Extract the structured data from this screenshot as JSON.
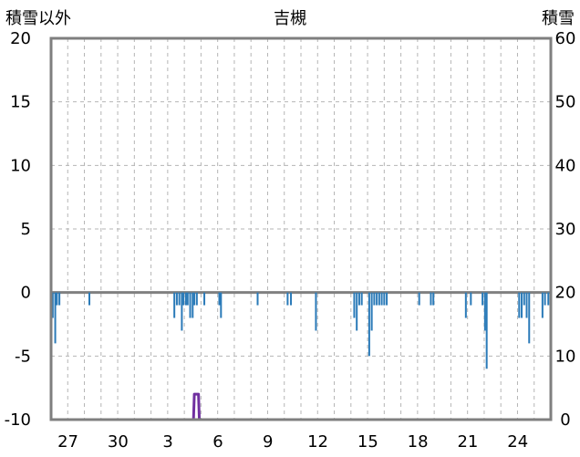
{
  "chart_data": {
    "type": "bar",
    "title": "吉槻",
    "left_axis_label": "積雪以外",
    "right_axis_label": "積雪",
    "left_ylim": [
      -10,
      20
    ],
    "left_yticks": [
      -10,
      -5,
      0,
      5,
      10,
      15,
      20
    ],
    "left_ytick_labels": [
      "-10",
      "-5",
      "0",
      "5",
      "10",
      "15",
      "20"
    ],
    "right_ylim": [
      0,
      60
    ],
    "right_yticks": [
      0,
      10,
      20,
      30,
      40,
      50,
      60
    ],
    "right_ytick_labels": [
      "0",
      "10",
      "20",
      "30",
      "40",
      "50",
      "60"
    ],
    "x_tick_labels": [
      "27",
      "30",
      "3",
      "6",
      "9",
      "12",
      "15",
      "18",
      "21",
      "24"
    ],
    "grid": true,
    "series": [
      {
        "type": "bar",
        "color": "#2a7ab8",
        "axis": "left",
        "values": [
          [
            0.1,
            -2
          ],
          [
            0.25,
            -4
          ],
          [
            0.35,
            -1
          ],
          [
            0.5,
            -1
          ],
          [
            2.3,
            -1
          ],
          [
            7.4,
            -2
          ],
          [
            7.55,
            -1
          ],
          [
            7.7,
            -1
          ],
          [
            7.85,
            -3
          ],
          [
            7.95,
            -1
          ],
          [
            8.1,
            -1
          ],
          [
            8.2,
            -1
          ],
          [
            8.35,
            -2
          ],
          [
            8.5,
            -2
          ],
          [
            8.6,
            -1
          ],
          [
            8.75,
            -1
          ],
          [
            9.2,
            -1
          ],
          [
            10.1,
            -1
          ],
          [
            10.2,
            -2
          ],
          [
            12.4,
            -1
          ],
          [
            14.2,
            -1
          ],
          [
            14.4,
            -1
          ],
          [
            15.9,
            -3
          ],
          [
            18.2,
            -2
          ],
          [
            18.35,
            -3
          ],
          [
            18.5,
            -1
          ],
          [
            18.65,
            -1
          ],
          [
            19.1,
            -5
          ],
          [
            19.25,
            -3
          ],
          [
            19.4,
            -1
          ],
          [
            19.55,
            -1
          ],
          [
            19.7,
            -1
          ],
          [
            19.85,
            -1
          ],
          [
            20.0,
            -1
          ],
          [
            20.15,
            -1
          ],
          [
            22.1,
            -1
          ],
          [
            22.8,
            -1
          ],
          [
            22.95,
            -1
          ],
          [
            24.9,
            -2
          ],
          [
            25.2,
            -1
          ],
          [
            25.9,
            -1
          ],
          [
            26.05,
            -3
          ],
          [
            26.15,
            -6
          ],
          [
            28.1,
            -2
          ],
          [
            28.25,
            -2
          ],
          [
            28.4,
            -1
          ],
          [
            28.55,
            -2
          ],
          [
            28.7,
            -4
          ],
          [
            29.5,
            -2
          ],
          [
            29.65,
            -1
          ],
          [
            29.85,
            -1
          ]
        ]
      },
      {
        "type": "line",
        "color": "#7030a0",
        "axis": "right",
        "values": [
          [
            0,
            0
          ],
          [
            8.55,
            0
          ],
          [
            8.6,
            4
          ],
          [
            8.85,
            4
          ],
          [
            8.9,
            0
          ],
          [
            30,
            0
          ]
        ]
      }
    ]
  }
}
